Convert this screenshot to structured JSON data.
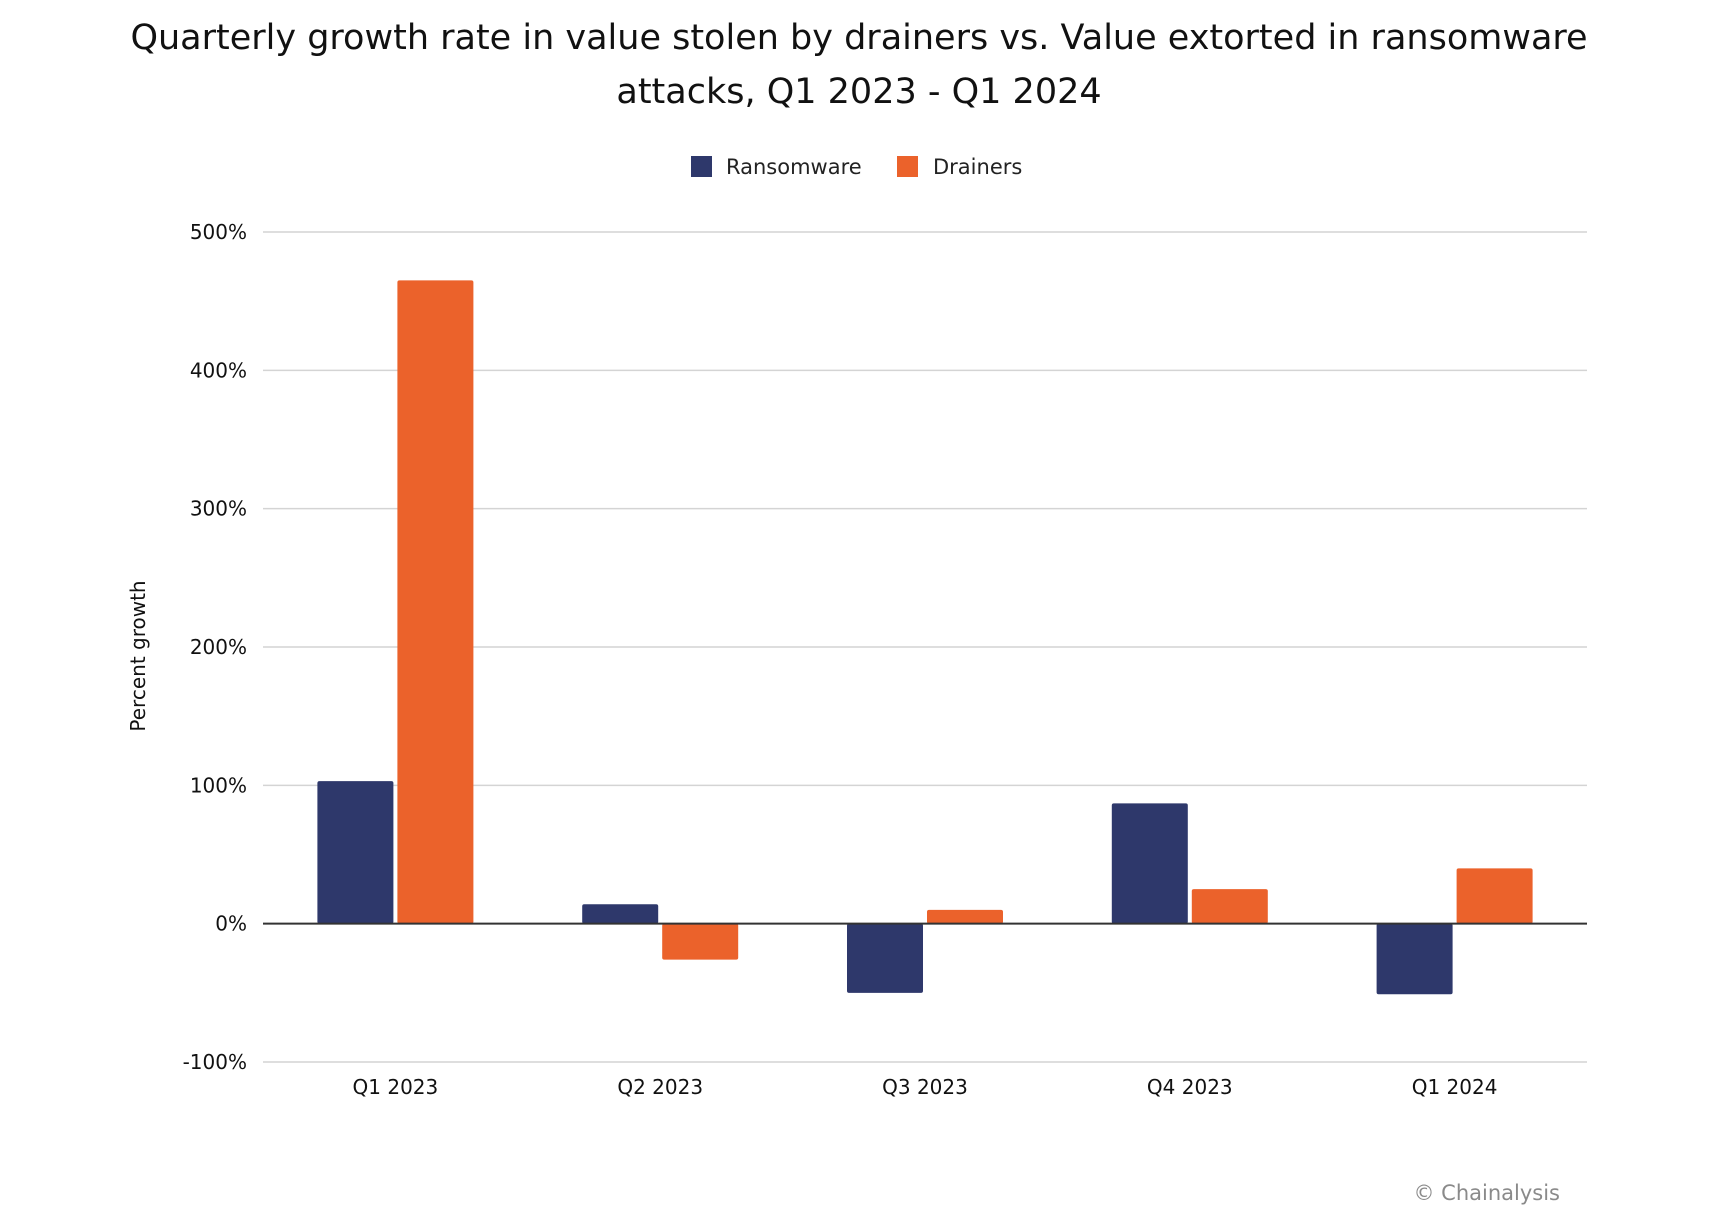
{
  "chart_data": {
    "type": "bar",
    "title_lines": [
      "Quarterly growth rate in value stolen by drainers vs. Value extorted in ransomware",
      "attacks, Q1 2023 - Q1 2024"
    ],
    "xlabel": "",
    "ylabel": "Percent growth",
    "ylim": [
      -100,
      500
    ],
    "y_ticks": [
      -100,
      0,
      100,
      200,
      300,
      400,
      500
    ],
    "y_tick_labels": [
      "-100%",
      "0%",
      "100%",
      "200%",
      "300%",
      "400%",
      "500%"
    ],
    "grid": true,
    "legend_position": "top-center",
    "categories": [
      "Q1 2023",
      "Q2 2023",
      "Q3 2023",
      "Q4 2023",
      "Q1 2024"
    ],
    "series": [
      {
        "name": "Ransomware",
        "color": "#2e386b",
        "values": [
          103,
          14,
          -50,
          87,
          -51
        ]
      },
      {
        "name": "Drainers",
        "color": "#eb622b",
        "values": [
          465,
          -26,
          10,
          25,
          40
        ]
      }
    ],
    "source": "© Chainalysis"
  }
}
